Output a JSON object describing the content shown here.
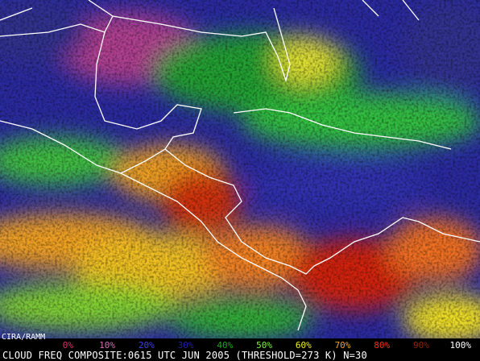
{
  "credit": "CIRA/RAMM",
  "legend": [
    {
      "label": "0%",
      "color": "#e0306a"
    },
    {
      "label": "10%",
      "color": "#d070b0"
    },
    {
      "label": "20%",
      "color": "#4040e0"
    },
    {
      "label": "30%",
      "color": "#2020a0"
    },
    {
      "label": "40%",
      "color": "#10b010"
    },
    {
      "label": "50%",
      "color": "#80f040"
    },
    {
      "label": "60%",
      "color": "#f0f020"
    },
    {
      "label": "70%",
      "color": "#f0a020"
    },
    {
      "label": "80%",
      "color": "#f03010"
    },
    {
      "label": "90%",
      "color": "#902010"
    },
    {
      "label": "100%",
      "color": "#ffffff"
    }
  ],
  "caption": "CLOUD FREQ COMPOSITE:0615 UTC JUN 2005 (THRESHOLD=273 K) N=30"
}
